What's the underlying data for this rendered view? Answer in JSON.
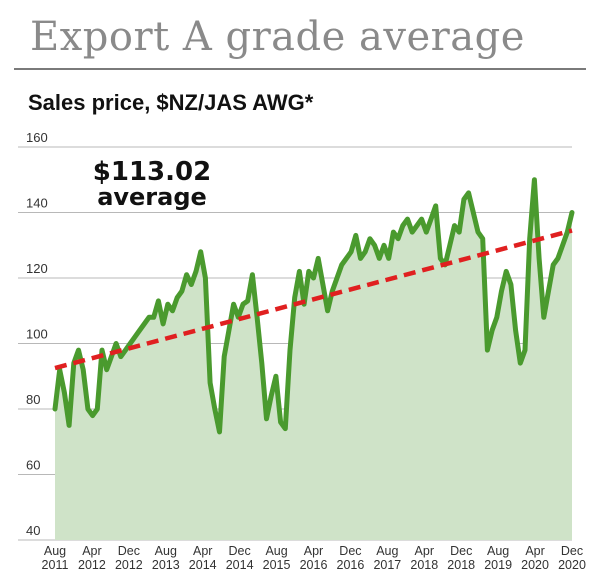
{
  "header": {
    "title": "Export A grade average",
    "subtitle": "Sales price, $NZ/JAS AWG*"
  },
  "chart_data": {
    "type": "line",
    "ylim": [
      40,
      160
    ],
    "yticks": [
      40,
      60,
      80,
      100,
      120,
      140,
      160
    ],
    "grid": true,
    "x_tick_labels": [
      [
        "Aug",
        "2011"
      ],
      [
        "Apr",
        "2012"
      ],
      [
        "Dec",
        "2012"
      ],
      [
        "Aug",
        "2013"
      ],
      [
        "Apr",
        "2014"
      ],
      [
        "Dec",
        "2014"
      ],
      [
        "Aug",
        "2015"
      ],
      [
        "Apr",
        "2016"
      ],
      [
        "Dec",
        "2016"
      ],
      [
        "Aug",
        "2017"
      ],
      [
        "Apr",
        "2018"
      ],
      [
        "Dec",
        "2018"
      ],
      [
        "Aug",
        "2019"
      ],
      [
        "Apr",
        "2020"
      ],
      [
        "Dec",
        "2020"
      ]
    ],
    "average_label": [
      "$113.02",
      "average"
    ],
    "colors": {
      "line": "#4a9a2e",
      "fill": "#cfe3c8",
      "trend": "#e02020",
      "grid": "#b8b8b8"
    },
    "series": [
      {
        "values": [
          80,
          92,
          85,
          75,
          94,
          98,
          92,
          80,
          78,
          80,
          98,
          92,
          96,
          100,
          96,
          98,
          100,
          102,
          104,
          106,
          108,
          108,
          113,
          106,
          112,
          110,
          114,
          116,
          121,
          118,
          122,
          128,
          120,
          88,
          80,
          73,
          96,
          104,
          112,
          108,
          112,
          113,
          121,
          108,
          94,
          77,
          84,
          90,
          76,
          74,
          98,
          114,
          122,
          112,
          122,
          120,
          126,
          118,
          110,
          116,
          120,
          124,
          126,
          128,
          133,
          126,
          128,
          132,
          130,
          126,
          130,
          126,
          134,
          132,
          136,
          138,
          134,
          136,
          138,
          134,
          138,
          142,
          126,
          124,
          130,
          136,
          134,
          144,
          146,
          140,
          134,
          132,
          98,
          104,
          108,
          116,
          122,
          118,
          104,
          94,
          98,
          132,
          150,
          126,
          108,
          116,
          124,
          126,
          130,
          134,
          140
        ]
      },
      {
        "trend": true,
        "values": [
          92.5,
          134.5
        ]
      }
    ]
  }
}
